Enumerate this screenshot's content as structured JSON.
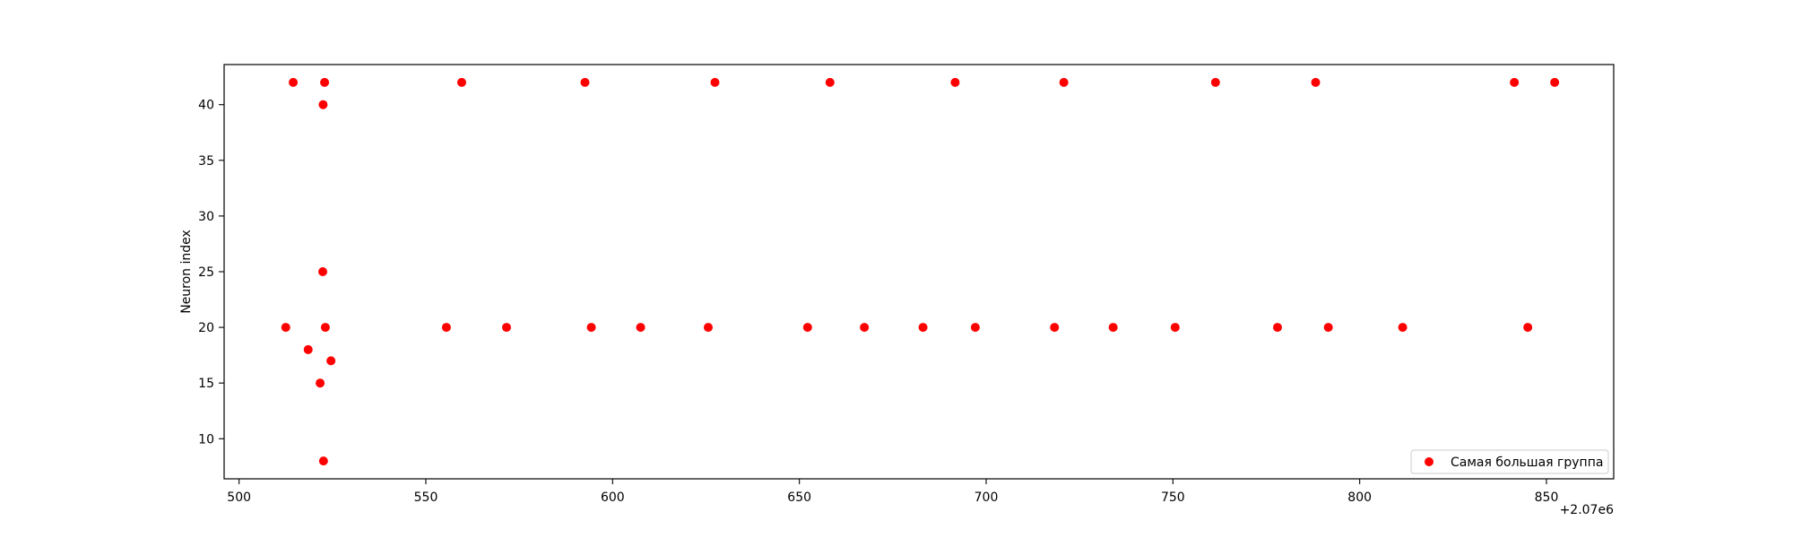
{
  "chart_data": {
    "type": "scatter",
    "title": "",
    "xlabel": "",
    "ylabel": "Neuron index",
    "x_offset_label": "+2.07e6",
    "xlim": [
      496,
      868
    ],
    "ylim": [
      6.4,
      43.6
    ],
    "x_ticks": [
      500,
      550,
      600,
      650,
      700,
      750,
      800,
      850
    ],
    "y_ticks": [
      10,
      15,
      20,
      25,
      30,
      35,
      40
    ],
    "grid": false,
    "legend_position": "lower-right",
    "color": "#ff0000",
    "series": [
      {
        "name": "Самая большая группа",
        "points": [
          {
            "x": 512.5,
            "y": 20
          },
          {
            "x": 514.5,
            "y": 42
          },
          {
            "x": 518.5,
            "y": 18
          },
          {
            "x": 521.7,
            "y": 15
          },
          {
            "x": 522.4,
            "y": 25
          },
          {
            "x": 522.5,
            "y": 40
          },
          {
            "x": 522.6,
            "y": 8
          },
          {
            "x": 522.9,
            "y": 42
          },
          {
            "x": 523.1,
            "y": 20
          },
          {
            "x": 524.6,
            "y": 17
          },
          {
            "x": 555.5,
            "y": 20
          },
          {
            "x": 559.6,
            "y": 42
          },
          {
            "x": 571.6,
            "y": 20
          },
          {
            "x": 592.6,
            "y": 42
          },
          {
            "x": 594.3,
            "y": 20
          },
          {
            "x": 607.5,
            "y": 20
          },
          {
            "x": 625.6,
            "y": 20
          },
          {
            "x": 627.4,
            "y": 42
          },
          {
            "x": 652.2,
            "y": 20
          },
          {
            "x": 658.2,
            "y": 42
          },
          {
            "x": 667.4,
            "y": 20
          },
          {
            "x": 683.1,
            "y": 20
          },
          {
            "x": 691.7,
            "y": 42
          },
          {
            "x": 697.1,
            "y": 20
          },
          {
            "x": 718.3,
            "y": 20
          },
          {
            "x": 720.8,
            "y": 42
          },
          {
            "x": 734.0,
            "y": 20
          },
          {
            "x": 750.6,
            "y": 20
          },
          {
            "x": 761.4,
            "y": 42
          },
          {
            "x": 778.0,
            "y": 20
          },
          {
            "x": 788.2,
            "y": 42
          },
          {
            "x": 791.6,
            "y": 20
          },
          {
            "x": 811.5,
            "y": 20
          },
          {
            "x": 841.4,
            "y": 42
          },
          {
            "x": 845.0,
            "y": 20
          },
          {
            "x": 852.2,
            "y": 42
          }
        ]
      }
    ]
  }
}
